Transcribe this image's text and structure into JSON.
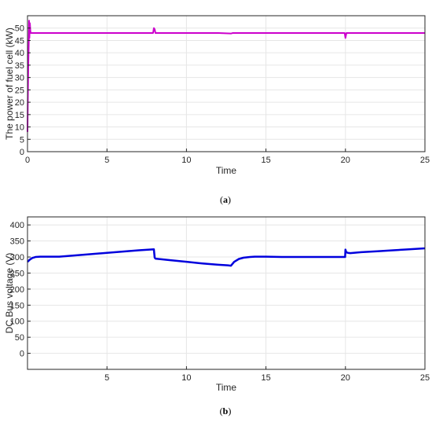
{
  "chart_data": [
    {
      "type": "line",
      "caption": "a",
      "xlabel": "Time",
      "ylabel": "The power of fuel cell (kW)",
      "xlim": [
        0,
        25
      ],
      "ylim": [
        0,
        55
      ],
      "xticks": [
        0,
        5,
        10,
        15,
        20,
        25
      ],
      "yticks": [
        0,
        5,
        10,
        15,
        20,
        25,
        30,
        35,
        40,
        45,
        50
      ],
      "grid": true,
      "line_color": "#cc00cc",
      "series": [
        {
          "x": [
            0,
            0.02,
            0.05,
            0.08,
            0.1,
            0.12,
            0.15,
            0.18,
            0.2,
            0.25,
            0.3,
            0.5,
            1,
            2,
            4,
            6,
            7.9,
            7.95,
            8.0,
            8.05,
            8.1,
            10,
            12,
            12.8,
            12.9,
            13,
            15,
            18,
            19.95,
            20.0,
            20.03,
            20.06,
            20.1,
            22,
            25
          ],
          "y": [
            8,
            20,
            35,
            44,
            53,
            46,
            52,
            49,
            48,
            48,
            48,
            48,
            48,
            48,
            48,
            48,
            48,
            50,
            49.5,
            48,
            48,
            48,
            48,
            47.8,
            48,
            48,
            48,
            48,
            48,
            46,
            47,
            48,
            48,
            48,
            48
          ]
        }
      ]
    },
    {
      "type": "line",
      "caption": "b",
      "xlabel": "Time",
      "ylabel": "DC Bus voltage (V)",
      "xlim": [
        0,
        25
      ],
      "ylim": [
        -50,
        425
      ],
      "xticks": [
        5,
        10,
        15,
        20,
        25
      ],
      "yticks": [
        0,
        50,
        100,
        150,
        200,
        250,
        300,
        350,
        400
      ],
      "grid": true,
      "line_color": "#0000dd",
      "series": [
        {
          "x": [
            0,
            0.15,
            0.3,
            0.5,
            0.8,
            1.2,
            2,
            3,
            4,
            5,
            6,
            7,
            7.95,
            8.0,
            8.05,
            9,
            10,
            11,
            12,
            12.6,
            12.8,
            13.0,
            13.3,
            13.6,
            14.0,
            14.3,
            15,
            16,
            17,
            18,
            19,
            19.98,
            20.0,
            20.05,
            20.15,
            20.3,
            21,
            22,
            23,
            24,
            25
          ],
          "y": [
            285,
            292,
            297,
            300,
            301,
            301,
            301,
            305,
            309,
            313,
            317,
            321,
            324,
            298,
            295,
            290,
            285,
            280,
            276,
            274,
            273,
            285,
            294,
            298,
            300,
            301,
            301,
            300,
            300,
            300,
            300,
            300,
            323,
            315,
            313,
            312,
            315,
            318,
            321,
            324,
            327
          ]
        }
      ]
    }
  ]
}
